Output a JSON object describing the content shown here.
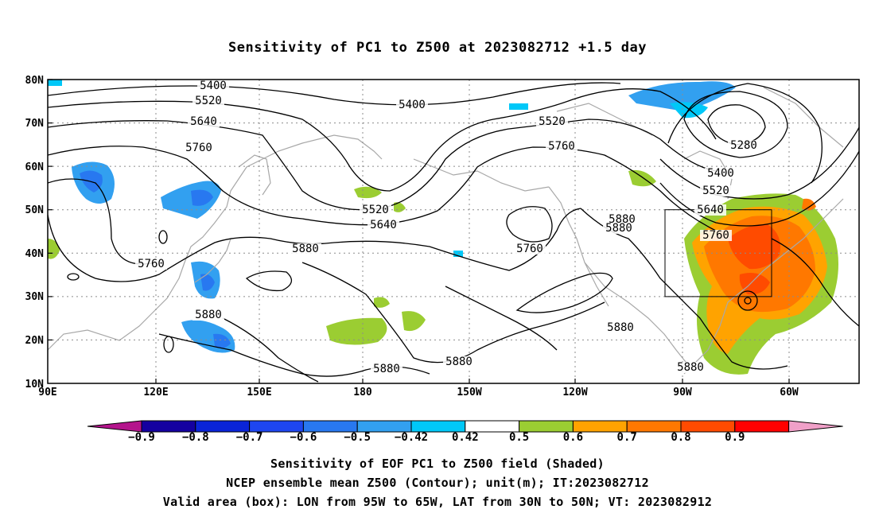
{
  "title": "Sensitivity of PC1 to Z500 at 2023082712 +1.5 day",
  "map": {
    "lat_labels": [
      "80N",
      "70N",
      "60N",
      "50N",
      "40N",
      "30N",
      "20N",
      "10N"
    ],
    "lon_labels": [
      "90E",
      "120E",
      "150E",
      "180",
      "150W",
      "120W",
      "90W",
      "60W"
    ],
    "contour_labels": [
      {
        "text": "5400"
      },
      {
        "text": "5520"
      },
      {
        "text": "5640"
      },
      {
        "text": "5760"
      },
      {
        "text": "5400"
      },
      {
        "text": "5520"
      },
      {
        "text": "5760"
      },
      {
        "text": "5280"
      },
      {
        "text": "5400"
      },
      {
        "text": "5520"
      },
      {
        "text": "5640"
      },
      {
        "text": "5760"
      },
      {
        "text": "5880"
      },
      {
        "text": "5880"
      },
      {
        "text": "5880"
      },
      {
        "text": "5880"
      },
      {
        "text": "5880"
      },
      {
        "text": "5880"
      },
      {
        "text": "5760"
      },
      {
        "text": "5760"
      },
      {
        "text": "5520"
      },
      {
        "text": "5640"
      },
      {
        "text": "5880"
      },
      {
        "text": "5880"
      }
    ],
    "valid_box": {
      "lon_from": "95W",
      "lon_to": "65W",
      "lat_from": "30N",
      "lat_to": "50N"
    }
  },
  "colorbar": {
    "labels": [
      "-0.9",
      "-0.8",
      "-0.7",
      "-0.6",
      "-0.5",
      "-0.42",
      "0.42",
      "0.5",
      "0.6",
      "0.7",
      "0.8",
      "0.9"
    ],
    "colors": [
      "#1400a0",
      "#0a24d8",
      "#1e46f0",
      "#2878f0",
      "#32a0f0",
      "#00c8f8",
      "#ffffff",
      "#9bcd32",
      "#ffa300",
      "#ff7800",
      "#ff4b00",
      "#ff0000"
    ],
    "left_triangle": "#b4148c",
    "right_triangle": "#f0a0c8"
  },
  "footer": {
    "line1": "Sensitivity of EOF PC1 to Z500 field (Shaded)",
    "line2": "NCEP ensemble mean Z500 (Contour); unit(m); IT:2023082712",
    "line3": "Valid area (box): LON from 95W to 65W, LAT from 30N to 50N; VT: 2023082912"
  }
}
